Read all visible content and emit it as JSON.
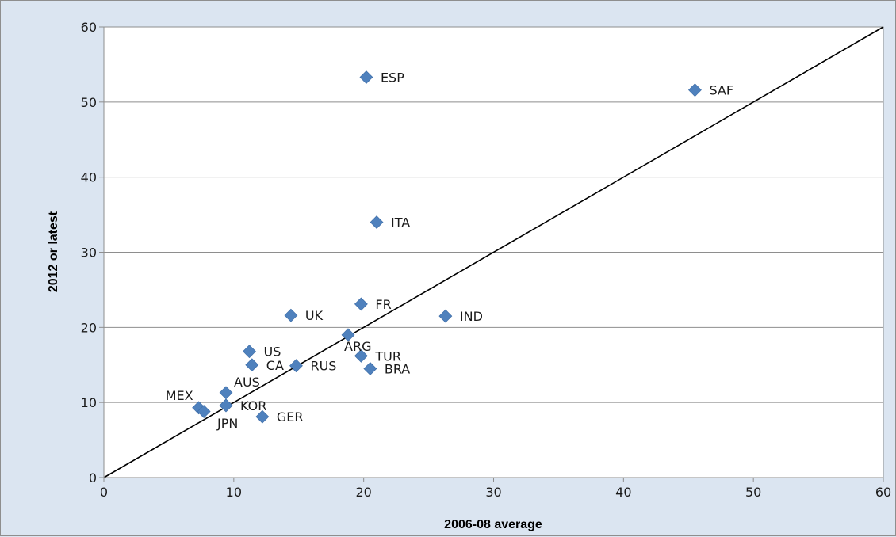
{
  "chart_data": {
    "type": "scatter",
    "title": "",
    "xlabel": "2006-08 average",
    "ylabel": "2012 or latest",
    "xlim": [
      0,
      60
    ],
    "ylim": [
      0,
      60
    ],
    "xticks": [
      "0",
      "10",
      "20",
      "30",
      "40",
      "50",
      "60"
    ],
    "yticks": [
      "0",
      "10",
      "20",
      "30",
      "40",
      "50",
      "60"
    ],
    "grid": "horizontal",
    "legend": "none",
    "marker": "diamond",
    "marker_color": "#4f81bd",
    "reference_line": {
      "label": "",
      "from": [
        0,
        0
      ],
      "to": [
        60,
        60
      ],
      "color": "#000000"
    },
    "points": [
      {
        "label": "ESP",
        "x": 20.2,
        "y": 53.3,
        "label_pos": "right"
      },
      {
        "label": "SAF",
        "x": 45.5,
        "y": 51.6,
        "label_pos": "right"
      },
      {
        "label": "ITA",
        "x": 21.0,
        "y": 34.0,
        "label_pos": "right"
      },
      {
        "label": "UK",
        "x": 14.4,
        "y": 21.6,
        "label_pos": "right"
      },
      {
        "label": "FR",
        "x": 19.8,
        "y": 23.1,
        "label_pos": "right"
      },
      {
        "label": "IND",
        "x": 26.3,
        "y": 21.5,
        "label_pos": "right"
      },
      {
        "label": "ARG",
        "x": 18.8,
        "y": 19.0,
        "label_pos": "below"
      },
      {
        "label": "US",
        "x": 11.2,
        "y": 16.8,
        "label_pos": "right"
      },
      {
        "label": "TUR",
        "x": 19.8,
        "y": 16.2,
        "label_pos": "right"
      },
      {
        "label": "CA",
        "x": 11.4,
        "y": 15.0,
        "label_pos": "right"
      },
      {
        "label": "RUS",
        "x": 14.8,
        "y": 14.9,
        "label_pos": "right"
      },
      {
        "label": "BRA",
        "x": 20.5,
        "y": 14.5,
        "label_pos": "right"
      },
      {
        "label": "AUS",
        "x": 9.4,
        "y": 11.3,
        "label_pos": "above-right"
      },
      {
        "label": "MEX",
        "x": 7.3,
        "y": 9.3,
        "label_pos": "above-left"
      },
      {
        "label": "",
        "x": 7.7,
        "y": 8.8,
        "label_pos": "none"
      },
      {
        "label": "KOR",
        "x": 9.4,
        "y": 9.6,
        "label_pos": "right"
      },
      {
        "label": "JPN",
        "x": 9.4,
        "y": 9.6,
        "label_pos": "below-left"
      },
      {
        "label": "GER",
        "x": 12.2,
        "y": 8.1,
        "label_pos": "right"
      }
    ]
  }
}
